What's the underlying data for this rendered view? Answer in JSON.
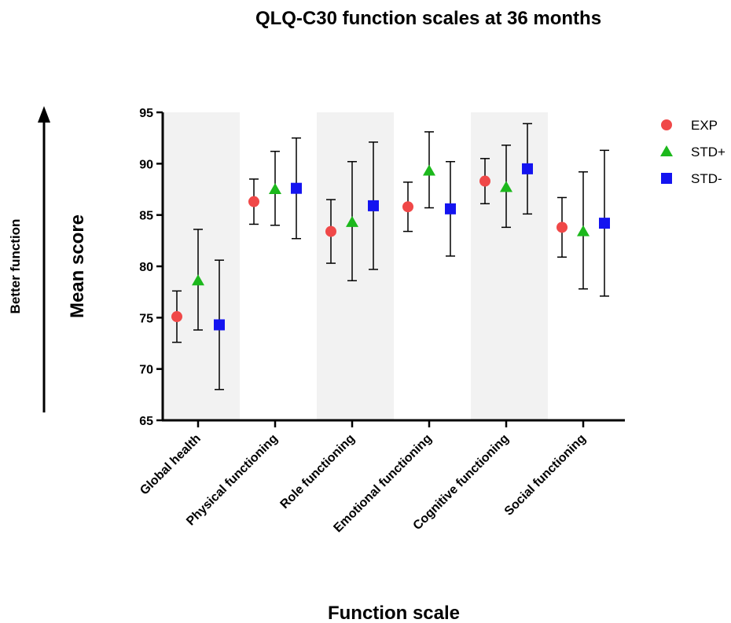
{
  "chart_data": {
    "type": "scatter",
    "title": "QLQ-C30 function scales at 36 months",
    "xlabel": "Function scale",
    "ylabel": "Mean score",
    "side_label": "Better function",
    "ylim": [
      65,
      95
    ],
    "yticks": [
      65,
      70,
      75,
      80,
      85,
      90,
      95
    ],
    "categories": [
      "Global health",
      "Physical functioning",
      "Role functioning",
      "Emotional functioning",
      "Cognitive functioning",
      "Social functioning"
    ],
    "shaded_categories": [
      0,
      2,
      4
    ],
    "legend_position": "top-right",
    "series": [
      {
        "name": "EXP",
        "marker": "circle",
        "color": "#f04848",
        "values": [
          75.1,
          86.3,
          83.4,
          85.8,
          88.3,
          83.8
        ],
        "err_low": [
          72.6,
          84.1,
          80.3,
          83.4,
          86.1,
          80.9
        ],
        "err_high": [
          77.6,
          88.5,
          86.5,
          88.2,
          90.5,
          86.7
        ]
      },
      {
        "name": "STD+",
        "marker": "triangle",
        "color": "#1cb81c",
        "values": [
          78.6,
          87.5,
          84.3,
          89.3,
          87.7,
          83.4
        ],
        "err_low": [
          73.8,
          84.0,
          78.6,
          85.7,
          83.8,
          77.8
        ],
        "err_high": [
          83.6,
          91.2,
          90.2,
          93.1,
          91.8,
          89.2
        ]
      },
      {
        "name": "STD-",
        "marker": "square",
        "color": "#1414f0",
        "values": [
          74.3,
          87.6,
          85.9,
          85.6,
          89.5,
          84.2
        ],
        "err_low": [
          68.0,
          82.7,
          79.7,
          81.0,
          85.1,
          77.1
        ],
        "err_high": [
          80.6,
          92.5,
          92.1,
          90.2,
          93.9,
          91.3
        ]
      }
    ]
  }
}
